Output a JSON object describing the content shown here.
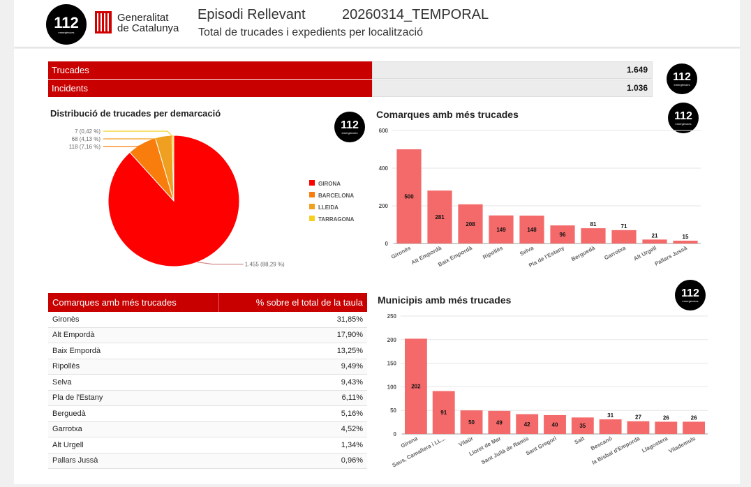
{
  "header": {
    "logo_number": "112",
    "logo_sub": "emergències",
    "gov_line1": "Generalitat",
    "gov_line2": "de Catalunya",
    "title": "Episodi Rellevant",
    "episode_code": "20260314_TEMPORAL",
    "subtitle": "Total de trucades i expedients per localització"
  },
  "summary": [
    {
      "label": "Trucades",
      "value": "1.649"
    },
    {
      "label": "Incidents",
      "value": "1.036"
    }
  ],
  "colors": {
    "accent_red": "#c80000",
    "bar_red": "#f46a6a",
    "pie": [
      "#ff0000",
      "#f97d0c",
      "#f0a020",
      "#f5d020"
    ]
  },
  "pie_section": {
    "title": "Distribució de trucades per demarcació"
  },
  "table": {
    "headers": [
      "Comarques amb més trucades",
      "% sobre el total de la taula"
    ],
    "rows": [
      [
        "Gironès",
        "31,85%"
      ],
      [
        "Alt Empordà",
        "17,90%"
      ],
      [
        "Baix Empordà",
        "13,25%"
      ],
      [
        "Ripollès",
        "9,49%"
      ],
      [
        "Selva",
        "9,43%"
      ],
      [
        "Pla de l'Estany",
        "6,11%"
      ],
      [
        "Berguedà",
        "5,16%"
      ],
      [
        "Garrotxa",
        "4,52%"
      ],
      [
        "Alt Urgell",
        "1,34%"
      ],
      [
        "Pallars Jussà",
        "0,96%"
      ]
    ]
  },
  "chart_data": [
    {
      "type": "pie",
      "title": "Distribució de trucades per demarcació",
      "categories": [
        "GIRONA",
        "BARCELONA",
        "LLEIDA",
        "TARRAGONA"
      ],
      "values": [
        1455,
        118,
        68,
        7
      ],
      "data_labels": [
        "1.455 (88,29 %)",
        "118 (7,16 %)",
        "68 (4,13 %)",
        "7 (0,42 %)"
      ],
      "legend": "right"
    },
    {
      "type": "bar",
      "title": "Comarques amb més trucades",
      "categories": [
        "Gironès",
        "Alt Empordà",
        "Baix Empordà",
        "Ripollès",
        "Selva",
        "Pla de l'Estany",
        "Berguedà",
        "Garrotxa",
        "Alt Urgell",
        "Pallars Jussà"
      ],
      "values": [
        500,
        281,
        208,
        149,
        148,
        96,
        81,
        71,
        21,
        15
      ],
      "ylim": [
        0,
        600
      ],
      "yticks": [
        0,
        200,
        400,
        600
      ],
      "grid": true
    },
    {
      "type": "bar",
      "title": "Municipis amb més trucades",
      "categories": [
        "Girona",
        "Saus, Camallera i LL...",
        "Vilaür",
        "Lloret de Mar",
        "Sant Julià de Ramis",
        "Sant Gregori",
        "Salt",
        "Bescanó",
        "la Bisbal d'Empordà",
        "Llagostera",
        "Vilademuls"
      ],
      "values": [
        202,
        91,
        50,
        49,
        42,
        40,
        35,
        31,
        27,
        26,
        26
      ],
      "ylim": [
        0,
        250
      ],
      "yticks": [
        0,
        50,
        100,
        150,
        200,
        250
      ],
      "grid": true
    }
  ]
}
